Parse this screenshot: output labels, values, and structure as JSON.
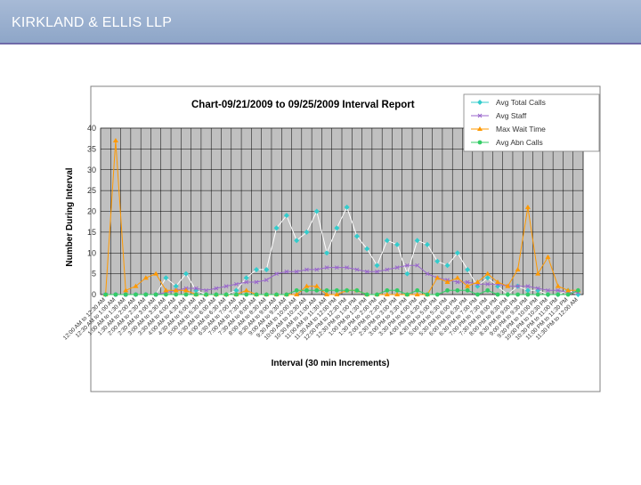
{
  "header": {
    "title": "KIRKLAND & ELLIS LLP"
  },
  "colors": {
    "banner": "#98acd0",
    "plot_bg": "#c0c0c0",
    "calls": "#33cccc",
    "staff": "#9966cc",
    "wait": "#ff9900",
    "abn": "#33cc66"
  },
  "chart_data": {
    "type": "line",
    "title": "Chart-09/21/2009 to 09/25/2009 Interval Report",
    "xlabel": "Interval (30 min Increments)",
    "ylabel": "Number During Interval",
    "ylim": [
      0,
      40
    ],
    "yticks": [
      0,
      5,
      10,
      15,
      20,
      25,
      30,
      35,
      40
    ],
    "grid": true,
    "legend_position": "top-right",
    "categories": [
      "12:00 AM to 12:30 AM",
      "12:30 AM to 1:00 AM",
      "1:00 AM to 1:30 AM",
      "1:30 AM to 2:00 AM",
      "2:00 AM to 2:30 AM",
      "2:30 AM to 3:00 AM",
      "3:00 AM to 3:30 AM",
      "3:30 AM to 4:00 AM",
      "4:00 AM to 4:30 AM",
      "4:30 AM to 5:00 AM",
      "5:00 AM to 5:30 AM",
      "5:30 AM to 6:00 AM",
      "6:00 AM to 6:30 AM",
      "6:30 AM to 7:00 AM",
      "7:00 AM to 7:30 AM",
      "7:30 AM to 8:00 AM",
      "8:00 AM to 8:30 AM",
      "8:30 AM to 9:00 AM",
      "9:00 AM to 9:30 AM",
      "9:30 AM to 10:00 AM",
      "10:00 AM to 10:30 AM",
      "10:30 AM to 11:00 AM",
      "11:00 AM to 11:30 AM",
      "11:30 AM to 12:00 PM",
      "12:00 PM to 12:30 PM",
      "12:30 PM to 1:00 PM",
      "1:00 PM to 1:30 PM",
      "1:30 PM to 2:00 PM",
      "2:00 PM to 2:30 PM",
      "2:30 PM to 3:00 PM",
      "3:00 PM to 3:30 PM",
      "3:30 PM to 4:00 PM",
      "4:00 PM to 4:30 PM",
      "4:30 PM to 5:00 PM",
      "5:00 PM to 5:30 PM",
      "5:30 PM to 6:00 PM",
      "6:00 PM to 6:30 PM",
      "6:30 PM to 7:00 PM",
      "7:00 PM to 7:30 PM",
      "7:30 PM to 8:00 PM",
      "8:00 PM to 8:30 PM",
      "8:30 PM to 9:00 PM",
      "9:00 PM to 9:30 PM",
      "9:30 PM to 10:00 PM",
      "10:00 PM to 10:30 PM",
      "10:30 PM to 11:00 PM",
      "11:00 PM to 11:30 PM",
      "11:30 PM to 12:00 AM"
    ],
    "series": [
      {
        "name": "Avg Total Calls",
        "color": "#33cccc",
        "marker": "diamond",
        "values": [
          0,
          0,
          0,
          0,
          0,
          0,
          4,
          2,
          5,
          1,
          0,
          0,
          0,
          1,
          4,
          6,
          6,
          16,
          19,
          13,
          15,
          20,
          10,
          16,
          21,
          14,
          11,
          7,
          13,
          12,
          5,
          13,
          12,
          8,
          7,
          10,
          6,
          2,
          4,
          2,
          0,
          2,
          1,
          1,
          0,
          0,
          1,
          0
        ]
      },
      {
        "name": "Avg Staff",
        "color": "#9966cc",
        "marker": "x",
        "values": [
          0,
          0,
          0,
          0,
          0,
          0,
          0.5,
          1,
          1.5,
          1.5,
          1,
          1.5,
          2,
          2.5,
          3,
          3,
          3.5,
          5,
          5.5,
          5.5,
          6,
          6,
          6.5,
          6.5,
          6.5,
          6,
          5.5,
          5.5,
          6,
          6.5,
          7,
          7,
          5,
          4,
          3.5,
          3,
          3,
          2.5,
          2.5,
          2.5,
          2,
          2,
          2,
          1.5,
          1,
          1,
          0.5,
          0.5
        ]
      },
      {
        "name": "Max Wait Time",
        "color": "#ff9900",
        "marker": "triangle",
        "values": [
          0,
          37,
          1,
          2,
          4,
          5,
          1,
          1,
          1,
          0,
          0,
          0,
          0,
          0,
          1,
          0,
          0,
          0,
          0,
          0,
          2,
          2,
          0,
          0,
          1,
          1,
          0,
          0,
          0,
          0,
          0,
          0,
          0,
          4,
          3,
          4,
          2,
          3,
          5,
          3,
          2,
          6,
          21,
          5,
          9,
          2,
          1,
          1
        ]
      },
      {
        "name": "Avg Abn Calls",
        "color": "#33cc66",
        "marker": "dot",
        "values": [
          0,
          0,
          0,
          0,
          0,
          0,
          0,
          0,
          0,
          0,
          0,
          0,
          0,
          0,
          0,
          0,
          0,
          0,
          0,
          1,
          1,
          1,
          1,
          1,
          1,
          1,
          0,
          0,
          1,
          1,
          0,
          1,
          0,
          0,
          1,
          1,
          1,
          0,
          1,
          0,
          0,
          0,
          0,
          0,
          0,
          0,
          0,
          1
        ]
      }
    ]
  }
}
